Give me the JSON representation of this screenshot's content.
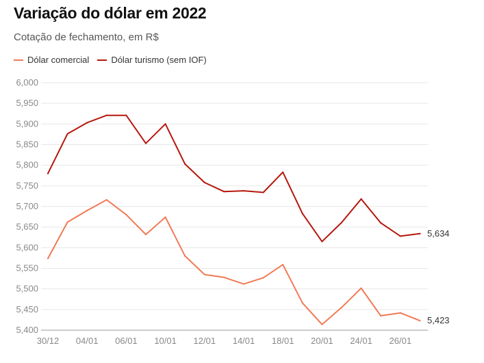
{
  "chart_data": {
    "type": "line",
    "title": "Variação do dólar em 2022",
    "subtitle": "Cotação de fechamento, em R$",
    "xlabel": "",
    "ylabel": "",
    "ylim": [
      5.4,
      6.0
    ],
    "y_ticks": [
      "6,000",
      "5,950",
      "5,900",
      "5,850",
      "5,800",
      "5,750",
      "5,700",
      "5,650",
      "5,600",
      "5,550",
      "5,500",
      "5,450",
      "5,400"
    ],
    "y_tick_values": [
      6.0,
      5.95,
      5.9,
      5.85,
      5.8,
      5.75,
      5.7,
      5.65,
      5.6,
      5.55,
      5.5,
      5.45,
      5.4
    ],
    "x_ticks": [
      {
        "label": "30/12",
        "index": 0
      },
      {
        "label": "04/01",
        "index": 2
      },
      {
        "label": "06/01",
        "index": 4
      },
      {
        "label": "10/01",
        "index": 6
      },
      {
        "label": "12/01",
        "index": 8
      },
      {
        "label": "14/01",
        "index": 10
      },
      {
        "label": "18/01",
        "index": 12
      },
      {
        "label": "20/01",
        "index": 14
      },
      {
        "label": "24/01",
        "index": 16
      },
      {
        "label": "26/01",
        "index": 18
      }
    ],
    "grid": true,
    "legend_position": "top-left",
    "series": [
      {
        "name": "Dólar comercial",
        "color": "#f07a55",
        "values": [
          5.574,
          5.662,
          5.69,
          5.716,
          5.68,
          5.632,
          5.674,
          5.58,
          5.535,
          5.528,
          5.512,
          5.527,
          5.559,
          5.466,
          5.414,
          5.455,
          5.502,
          5.435,
          5.442,
          5.423
        ],
        "end_label": "5,423"
      },
      {
        "name": "Dólar turismo (sem IOF)",
        "color": "#b5160b",
        "values": [
          5.78,
          5.876,
          5.903,
          5.921,
          5.921,
          5.853,
          5.9,
          5.803,
          5.758,
          5.736,
          5.738,
          5.734,
          5.783,
          5.683,
          5.615,
          5.661,
          5.718,
          5.66,
          5.628,
          5.634
        ],
        "end_label": "5,634"
      }
    ]
  }
}
